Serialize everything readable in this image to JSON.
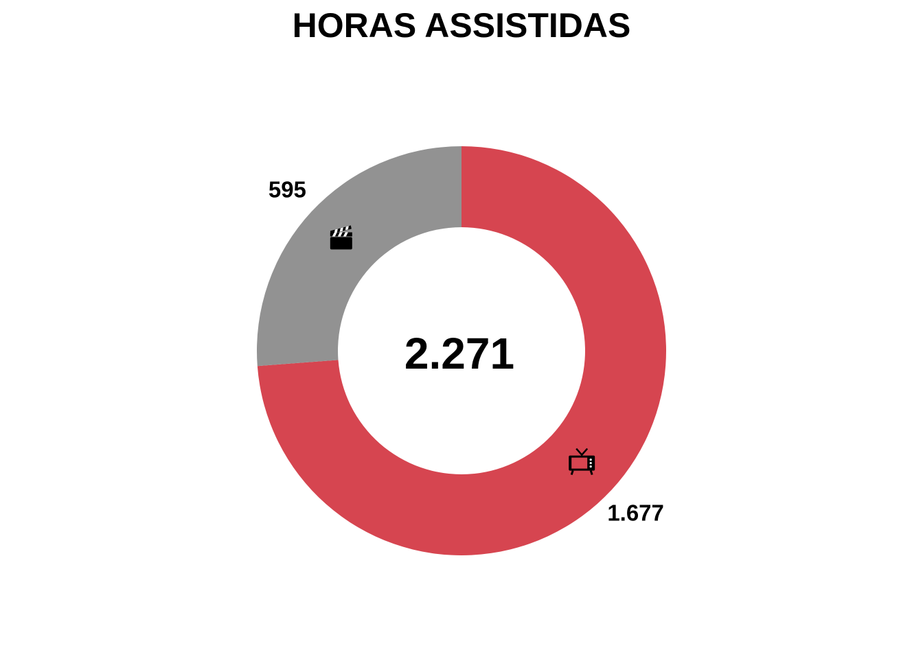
{
  "chart_data": {
    "type": "pie",
    "donut": true,
    "title": "HORAS ASSISTIDAS",
    "center_label": "2.271",
    "total": 2271,
    "start": "12 o'clock, clockwise",
    "slices": [
      {
        "value": 1677,
        "label": "1.677",
        "icon": "tv-icon",
        "color": "#D64550"
      },
      {
        "value": 595,
        "label": "595",
        "icon": "clapperboard-icon",
        "color": "#929292"
      }
    ],
    "legend": "none"
  }
}
